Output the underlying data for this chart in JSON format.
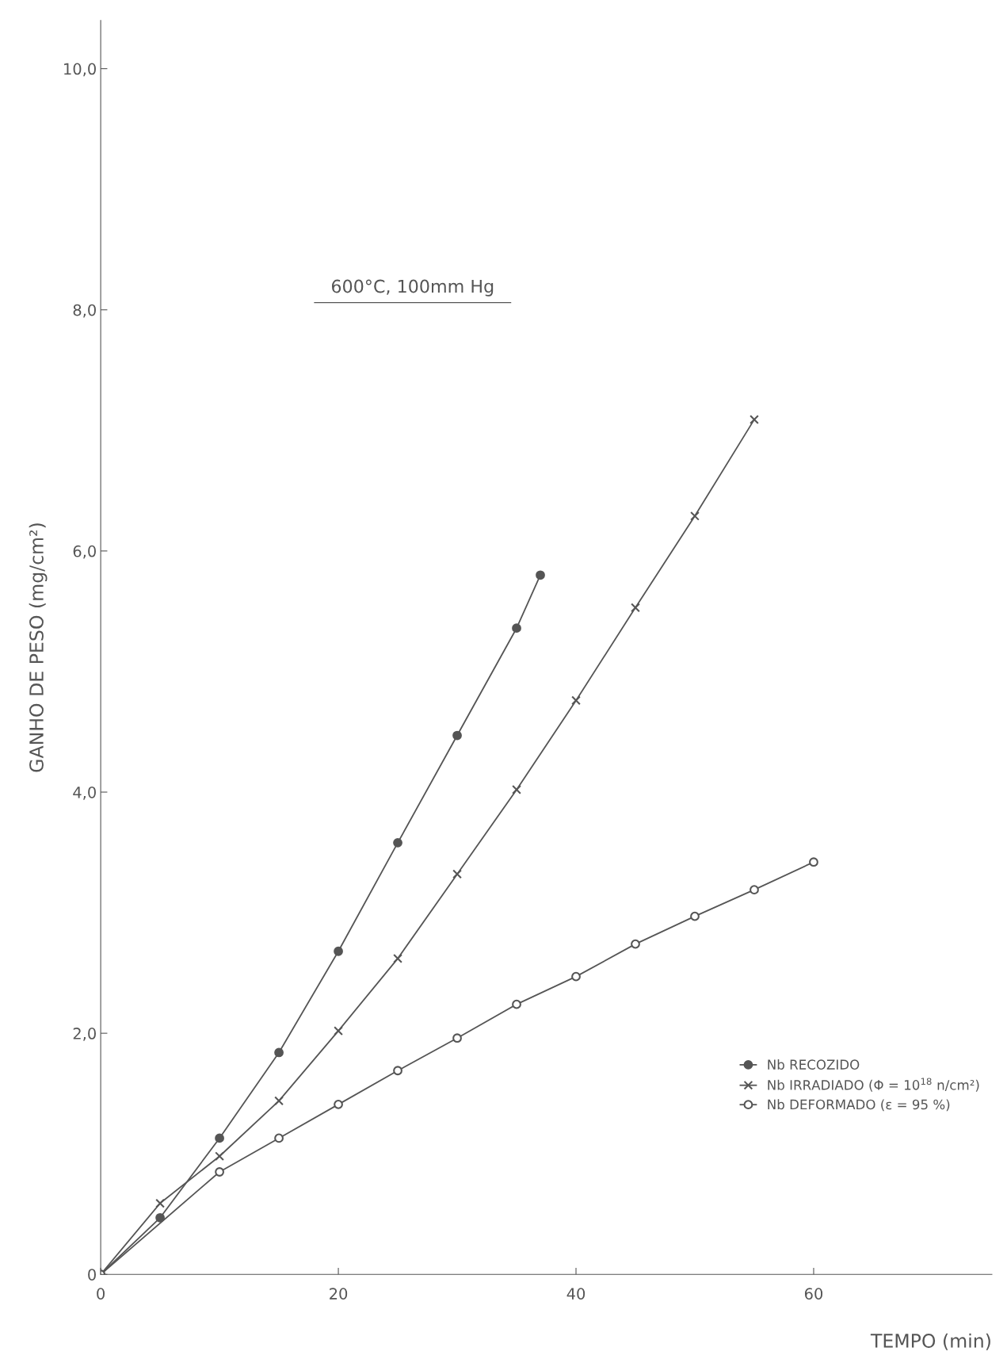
{
  "chart_data": {
    "type": "line",
    "xlabel": "TEMPO (min)",
    "ylabel": "GANHO DE PESO (mg/cm²)",
    "annotations": [
      "600°C, 100mm Hg"
    ],
    "xlim": [
      0,
      75
    ],
    "xticks": [
      0,
      20,
      40,
      60
    ],
    "ylim": [
      0,
      10.4
    ],
    "yticks": [
      0,
      {
        "value": 2,
        "label": "2,0"
      },
      {
        "value": 4,
        "label": "4,0"
      },
      {
        "value": 6,
        "label": "6,0"
      },
      {
        "value": 8,
        "label": "8,0"
      },
      {
        "value": 10,
        "label": "10,0"
      }
    ],
    "grid": false,
    "legend": "bottom right",
    "line_style": "solid",
    "series": [
      {
        "name": "Nb RECOZIDO",
        "color": "#555555",
        "marker": "circle",
        "x": [
          0,
          5,
          10,
          15,
          20,
          25,
          30,
          35,
          37
        ],
        "values": [
          0,
          0.47,
          1.13,
          1.84,
          2.68,
          3.58,
          4.47,
          5.36,
          5.8
        ]
      },
      {
        "name": "Nb IRRADIADO (Φ = 10$^{18}$ n/cm²)",
        "color": "#555555",
        "marker": "cross",
        "x": [
          0,
          5,
          10,
          15,
          20,
          25,
          30,
          35,
          40,
          45,
          50,
          55
        ],
        "values": [
          0,
          0.59,
          0.98,
          1.44,
          2.02,
          2.62,
          3.32,
          4.02,
          4.76,
          5.53,
          6.29,
          7.09
        ]
      },
      {
        "name": "Nb DEFORMADO (ε = 95 %)",
        "color": "#555555",
        "marker": "open_circle",
        "x": [
          0,
          10,
          15,
          20,
          25,
          30,
          35,
          40,
          45,
          50,
          55,
          60
        ],
        "values": [
          0,
          0.85,
          1.13,
          1.41,
          1.69,
          1.96,
          2.24,
          2.47,
          2.74,
          2.97,
          3.19,
          3.42
        ]
      }
    ]
  }
}
